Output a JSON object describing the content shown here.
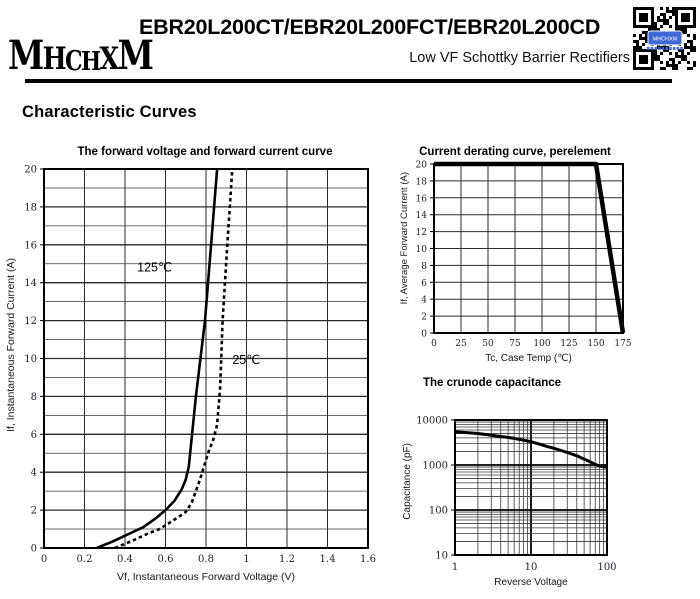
{
  "colors": {
    "ink": "#000000",
    "qr_badge_blue": "#3f68d8",
    "grid_minor": "#3a3a3a",
    "grid_major": "#2b2b2b"
  },
  "header": {
    "brand": "MHCHXM",
    "title": "EBR20L200CT/EBR20L200FCT/EBR20L200CD",
    "subtitle": "Low VF Schottky Barrier Rectifiers"
  },
  "section_title": "Characteristic Curves",
  "chart_data": [
    {
      "id": "forward_voltage_curve",
      "type": "line",
      "title": "The forward voltage and forward current curve",
      "xlabel": "Vf, Instantaneous Forward Voltage (V)",
      "ylabel": "If, Instantaneous Forward Current (A)",
      "xscale": "linear",
      "yscale": "linear",
      "xlim": [
        0,
        1.6
      ],
      "ylim": [
        0,
        20
      ],
      "xticks": [
        0,
        0.2,
        0.4,
        0.6,
        0.8,
        1,
        1.2,
        1.4,
        1.6
      ],
      "xtick_labels": [
        "0",
        "0.2",
        "0.4",
        "0.6",
        "0.8",
        "1",
        "1.2",
        "1.4",
        "1.6"
      ],
      "yticks": [
        0,
        2,
        4,
        6,
        8,
        10,
        12,
        14,
        16,
        18,
        20
      ],
      "ytick_labels": [
        "0",
        "2",
        "4",
        "6",
        "8",
        "10",
        "12",
        "14",
        "16",
        "18",
        "20"
      ],
      "y_minor_step": 1,
      "grid": true,
      "legend_position": "none",
      "series": [
        {
          "name": "125℃",
          "style": "solid",
          "width": 2.6,
          "points": [
            [
              0.26,
              0
            ],
            [
              0.34,
              0.35
            ],
            [
              0.42,
              0.75
            ],
            [
              0.49,
              1.1
            ],
            [
              0.55,
              1.55
            ],
            [
              0.6,
              2.0
            ],
            [
              0.645,
              2.5
            ],
            [
              0.68,
              3.1
            ],
            [
              0.7,
              3.6
            ],
            [
              0.715,
              4.3
            ],
            [
              0.75,
              8
            ],
            [
              0.795,
              12
            ],
            [
              0.825,
              16
            ],
            [
              0.855,
              20
            ]
          ]
        },
        {
          "name": "25℃",
          "style": "dashed",
          "width": 2.6,
          "points": [
            [
              0.35,
              0
            ],
            [
              0.44,
              0.4
            ],
            [
              0.51,
              0.75
            ],
            [
              0.57,
              1.0
            ],
            [
              0.63,
              1.4
            ],
            [
              0.68,
              1.75
            ],
            [
              0.7,
              1.9
            ],
            [
              0.73,
              2.4
            ],
            [
              0.75,
              3.0
            ],
            [
              0.77,
              3.6
            ],
            [
              0.79,
              4.3
            ],
            [
              0.81,
              5.0
            ],
            [
              0.835,
              5.7
            ],
            [
              0.855,
              6.5
            ],
            [
              0.87,
              8.5
            ],
            [
              0.882,
              12
            ],
            [
              0.905,
              16
            ],
            [
              0.93,
              20
            ]
          ]
        }
      ],
      "annotations": [
        {
          "text": "125℃",
          "x": 0.46,
          "y": 14.6
        },
        {
          "text": "25℃",
          "x": 0.93,
          "y": 9.7
        }
      ]
    },
    {
      "id": "current_derating_curve",
      "type": "line",
      "title": "Current derating curve, perelement",
      "xlabel": "Tc, Case Temp (℃)",
      "ylabel": "If, Average Forward Current (A)",
      "xscale": "linear",
      "yscale": "linear",
      "xlim": [
        0,
        175
      ],
      "ylim": [
        0,
        20
      ],
      "xticks": [
        0,
        25,
        50,
        75,
        100,
        125,
        150,
        175
      ],
      "xtick_labels": [
        "0",
        "25",
        "50",
        "75",
        "100",
        "125",
        "150",
        "175"
      ],
      "yticks": [
        0,
        2,
        4,
        6,
        8,
        10,
        12,
        14,
        16,
        18,
        20
      ],
      "ytick_labels": [
        "0",
        "2",
        "4",
        "6",
        "8",
        "10",
        "12",
        "14",
        "16",
        "18",
        "20"
      ],
      "grid": true,
      "legend_position": "none",
      "series": [
        {
          "name": "derating",
          "style": "solid",
          "width": 4.5,
          "points": [
            [
              0,
              20
            ],
            [
              150,
              20
            ],
            [
              175,
              0
            ]
          ]
        }
      ],
      "annotations": []
    },
    {
      "id": "junction_capacitance",
      "type": "line",
      "title": "The crunode capacitance",
      "xlabel": "Reverse Voltage",
      "ylabel": "Capacitance (pF)",
      "xscale": "log",
      "yscale": "log",
      "xlim": [
        1,
        100
      ],
      "ylim": [
        10,
        10000
      ],
      "xticks": [
        1,
        10,
        100
      ],
      "xtick_labels": [
        "1",
        "10",
        "100"
      ],
      "yticks": [
        10,
        100,
        1000,
        10000
      ],
      "ytick_labels": [
        "10",
        "100",
        "1000",
        "10000"
      ],
      "grid": true,
      "legend_position": "none",
      "series": [
        {
          "name": "capacitance",
          "style": "solid",
          "width": 3,
          "points": [
            [
              1,
              5500
            ],
            [
              1.5,
              5200
            ],
            [
              2,
              5000
            ],
            [
              3,
              4600
            ],
            [
              4,
              4300
            ],
            [
              5,
              4100
            ],
            [
              6,
              3900
            ],
            [
              8,
              3550
            ],
            [
              10,
              3300
            ],
            [
              13,
              2900
            ],
            [
              16,
              2600
            ],
            [
              20,
              2350
            ],
            [
              25,
              2100
            ],
            [
              30,
              1900
            ],
            [
              40,
              1600
            ],
            [
              50,
              1350
            ],
            [
              60,
              1180
            ],
            [
              70,
              1030
            ],
            [
              80,
              950
            ],
            [
              90,
              910
            ],
            [
              100,
              895
            ]
          ]
        }
      ],
      "annotations": []
    }
  ]
}
